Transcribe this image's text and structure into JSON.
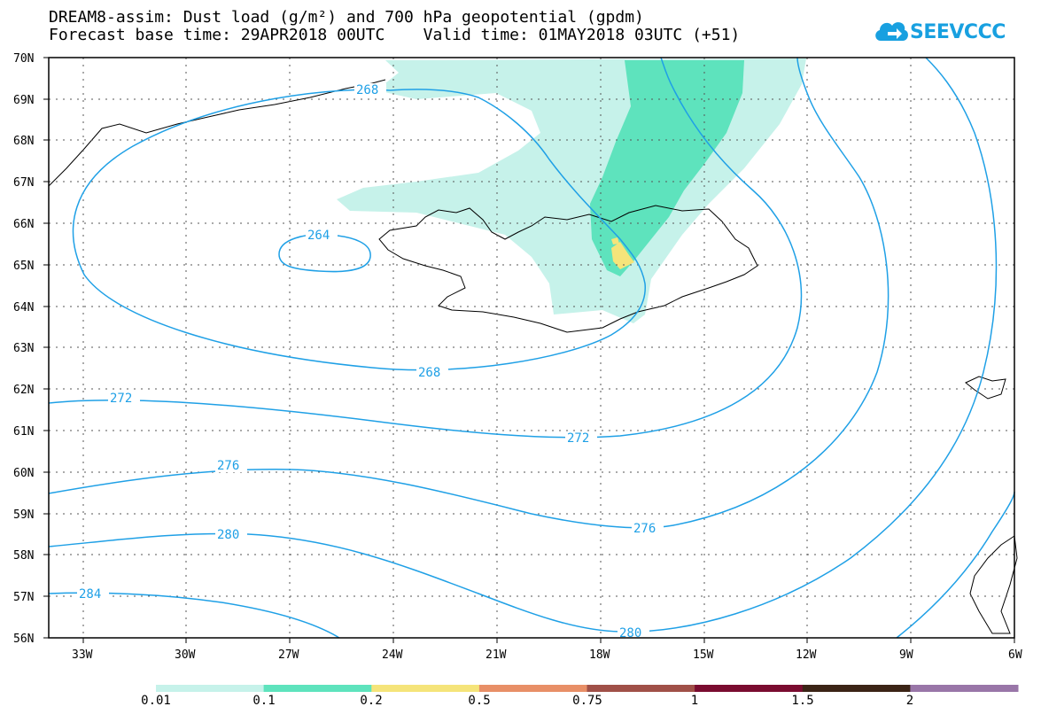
{
  "title": {
    "line1": "DREAM8-assim: Dust load (g/m²) and 700 hPa geopotential (gpdm)",
    "line2": "Forecast base time: 29APR2018 00UTC    Valid time: 01MAY2018 03UTC (+51)"
  },
  "logo": {
    "text": "SEEVCCC",
    "icon": "cloud-arrow-icon"
  },
  "map": {
    "lat_range": [
      56,
      70
    ],
    "lon_range": [
      -34.5,
      -6
    ],
    "lat_labels": [
      "70N",
      "69N",
      "68N",
      "67N",
      "66N",
      "65N",
      "64N",
      "63N",
      "62N",
      "61N",
      "60N",
      "59N",
      "58N",
      "57N",
      "56N"
    ],
    "lon_labels": [
      "33W",
      "30W",
      "27W",
      "24W",
      "21W",
      "18W",
      "15W",
      "12W",
      "9W",
      "6W"
    ],
    "contour_labels": [
      {
        "value": "268"
      },
      {
        "value": "264"
      },
      {
        "value": "268"
      },
      {
        "value": "272"
      },
      {
        "value": "272"
      },
      {
        "value": "276"
      },
      {
        "value": "276"
      },
      {
        "value": "280"
      },
      {
        "value": "280"
      },
      {
        "value": "284"
      }
    ],
    "colors": {
      "contour": "#1fa0e6",
      "dust_001": "#c6f2ea",
      "dust_01": "#5ee3bd",
      "dust_02": "#f5e47a"
    }
  },
  "colorbar": {
    "labels": [
      "0.01",
      "0.1",
      "0.2",
      "0.5",
      "0.75",
      "1",
      "1.5",
      "2"
    ],
    "colors": [
      "#c6f2ea",
      "#5ee3bd",
      "#f5e47a",
      "#e88f67",
      "#a05048",
      "#7a0c30",
      "#3b2416",
      "#9976a8"
    ]
  }
}
